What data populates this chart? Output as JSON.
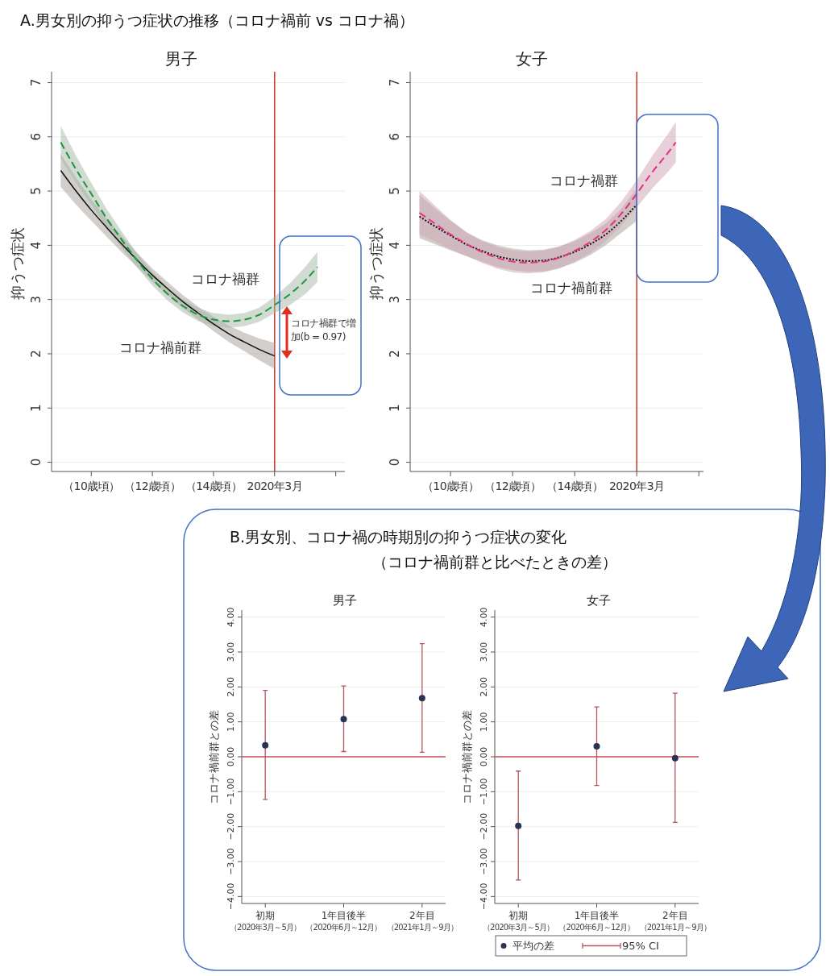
{
  "chart_data": [
    {
      "type": "line",
      "title": "男子",
      "ylabel": "抑うつ症状",
      "xlim": [
        8.7,
        18.3
      ],
      "xticks": [
        {
          "value": 10,
          "label": "（10歳頃）"
        },
        {
          "value": 12,
          "label": "（12歳頃）"
        },
        {
          "value": 14,
          "label": "（14歳頃）"
        },
        {
          "value": 16,
          "label": "2020年3月"
        },
        {
          "value": 18,
          "label": null
        }
      ],
      "ylim": [
        -0.17,
        7.2
      ],
      "yticks": [
        0,
        1,
        2,
        3,
        4,
        5,
        6,
        7
      ],
      "grid": "y",
      "legend": false,
      "ref_lines": [
        {
          "axis": "x",
          "value": 16,
          "color": "#c0392b"
        }
      ],
      "annotations": [
        "A.男女別の抑うつ症状の推移（コロナ禍前 vs コロナ禍）",
        "コロナ禍群で増加(b = 0.97)"
      ],
      "series": [
        {
          "name": "コロナ禍前群",
          "color": "#111111",
          "line_style": "solid",
          "x": [
            9,
            9.5,
            10,
            10.5,
            11,
            11.5,
            12,
            12.5,
            13,
            13.5,
            14,
            14.5,
            15,
            15.5,
            16
          ],
          "values": [
            5.38,
            5.0,
            4.65,
            4.33,
            4.02,
            3.73,
            3.45,
            3.2,
            2.96,
            2.75,
            2.55,
            2.37,
            2.22,
            2.08,
            1.96
          ],
          "lower": [
            5.08,
            4.75,
            4.45,
            4.16,
            3.87,
            3.6,
            3.33,
            3.08,
            2.84,
            2.63,
            2.42,
            2.22,
            2.05,
            1.88,
            1.72
          ],
          "upper": [
            5.68,
            5.25,
            4.85,
            4.5,
            4.17,
            3.86,
            3.57,
            3.32,
            3.08,
            2.87,
            2.68,
            2.52,
            2.39,
            2.28,
            2.2
          ]
        },
        {
          "name": "コロナ禍群",
          "color": "#1a9641",
          "line_style": "dashed",
          "x": [
            9,
            9.5,
            10,
            10.5,
            11,
            11.5,
            12,
            12.5,
            13,
            13.5,
            14,
            14.5,
            15,
            15.5,
            16,
            16.5,
            17,
            17.4
          ],
          "values": [
            5.9,
            5.4,
            4.95,
            4.5,
            4.1,
            3.72,
            3.38,
            3.1,
            2.88,
            2.72,
            2.63,
            2.6,
            2.63,
            2.72,
            2.9,
            3.1,
            3.35,
            3.6
          ],
          "lower": [
            5.6,
            5.15,
            4.75,
            4.33,
            3.95,
            3.59,
            3.26,
            2.98,
            2.76,
            2.6,
            2.51,
            2.48,
            2.51,
            2.59,
            2.75,
            2.9,
            3.1,
            3.32
          ],
          "upper": [
            6.2,
            5.65,
            5.15,
            4.67,
            4.25,
            3.85,
            3.5,
            3.22,
            3.0,
            2.84,
            2.75,
            2.72,
            2.75,
            2.85,
            3.05,
            3.3,
            3.6,
            3.88
          ]
        }
      ]
    },
    {
      "type": "line",
      "title": "女子",
      "ylabel": "抑うつ症状",
      "xlim": [
        8.7,
        18.15
      ],
      "xticks": [
        {
          "value": 10,
          "label": "（10歳頃）"
        },
        {
          "value": 12,
          "label": "（12歳頃）"
        },
        {
          "value": 14,
          "label": "（14歳頃）"
        },
        {
          "value": 16,
          "label": "2020年3月"
        },
        {
          "value": 18,
          "label": null
        }
      ],
      "ylim": [
        -0.17,
        7.2
      ],
      "yticks": [
        0,
        1,
        2,
        3,
        4,
        5,
        6,
        7
      ],
      "grid": "y",
      "legend": false,
      "ref_lines": [
        {
          "axis": "x",
          "value": 16,
          "color": "#c0392b"
        }
      ],
      "series": [
        {
          "name": "コロナ禍前群",
          "color": "#111111",
          "line_style": "dotted",
          "x": [
            9,
            9.5,
            10,
            10.5,
            11,
            11.5,
            12,
            12.5,
            13,
            13.5,
            14,
            14.5,
            15,
            15.5,
            16
          ],
          "values": [
            4.53,
            4.35,
            4.18,
            4.02,
            3.9,
            3.8,
            3.74,
            3.71,
            3.72,
            3.78,
            3.88,
            4.02,
            4.2,
            4.45,
            4.75
          ],
          "lower": [
            4.13,
            4.02,
            3.91,
            3.8,
            3.7,
            3.6,
            3.54,
            3.51,
            3.52,
            3.58,
            3.68,
            3.82,
            4.0,
            4.23,
            4.45
          ],
          "upper": [
            4.93,
            4.68,
            4.45,
            4.24,
            4.1,
            4.0,
            3.94,
            3.91,
            3.92,
            3.98,
            4.08,
            4.22,
            4.4,
            4.67,
            5.05
          ]
        },
        {
          "name": "コロナ禍群",
          "color": "#e8308a",
          "line_style": "dashed",
          "x": [
            9,
            9.5,
            10,
            10.5,
            11,
            11.5,
            12,
            12.5,
            13,
            13.5,
            14,
            14.5,
            15,
            15.5,
            16,
            16.5,
            17,
            17.26
          ],
          "values": [
            4.6,
            4.4,
            4.2,
            4.03,
            3.88,
            3.77,
            3.7,
            3.68,
            3.7,
            3.77,
            3.9,
            4.06,
            4.28,
            4.58,
            4.95,
            5.35,
            5.7,
            5.9
          ],
          "lower": [
            4.2,
            4.07,
            3.93,
            3.81,
            3.68,
            3.57,
            3.5,
            3.48,
            3.5,
            3.57,
            3.7,
            3.86,
            4.08,
            4.36,
            4.7,
            5.05,
            5.35,
            5.53
          ],
          "upper": [
            5.0,
            4.73,
            4.47,
            4.25,
            4.08,
            3.97,
            3.9,
            3.88,
            3.9,
            3.97,
            4.1,
            4.26,
            4.48,
            4.8,
            5.2,
            5.65,
            6.05,
            6.27
          ]
        }
      ]
    },
    {
      "type": "scatter",
      "title": "男子",
      "ylabel": "コロナ禍前群との差",
      "categories": [
        "初期（2020年3月～5月）",
        "1年目後半（2020年6月～12月）",
        "2年目（2021年1月～9月）"
      ],
      "ylim": [
        -4.2,
        4.2
      ],
      "yticks": [
        {
          "value": -4,
          "label": "−4.00"
        },
        {
          "value": -3,
          "label": "−3.00"
        },
        {
          "value": -2,
          "label": "−2.00"
        },
        {
          "value": -1,
          "label": "−1.00"
        },
        {
          "value": 0,
          "label": "0.00"
        },
        {
          "value": 1,
          "label": "1.00"
        },
        {
          "value": 2,
          "label": "2.00"
        },
        {
          "value": 3,
          "label": "3.00"
        },
        {
          "value": 4,
          "label": "4.00"
        }
      ],
      "grid": "y",
      "marker": "circle",
      "ref_lines": [
        {
          "axis": "y",
          "value": 0,
          "color": "#d0505a"
        }
      ],
      "annotations": [
        "B.男女別、コロナ禍の時期別の抑うつ症状の変化（コロナ禍前群と比べたときの差）"
      ],
      "series": [
        {
          "color": "#2b3352",
          "values": [
            0.33,
            1.08,
            1.68
          ],
          "errors": [
            [
              -1.22,
              1.9
            ],
            [
              0.15,
              2.03
            ],
            [
              0.13,
              3.24
            ]
          ]
        }
      ]
    },
    {
      "type": "scatter",
      "title": "女子",
      "ylabel": "コロナ禍前群との差",
      "categories": [
        "初期（2020年3月～5月）",
        "1年目後半（2020年6月～12月）",
        "2年目（2021年1月～9月）"
      ],
      "ylim": [
        -4.2,
        4.2
      ],
      "yticks": [
        {
          "value": -4,
          "label": "−4.00"
        },
        {
          "value": -3,
          "label": "−3.00"
        },
        {
          "value": -2,
          "label": "−2.00"
        },
        {
          "value": -1,
          "label": "−1.00"
        },
        {
          "value": 0,
          "label": "0.00"
        },
        {
          "value": 1,
          "label": "1.00"
        },
        {
          "value": 2,
          "label": "2.00"
        },
        {
          "value": 3,
          "label": "3.00"
        },
        {
          "value": 4,
          "label": "4.00"
        }
      ],
      "grid": "y",
      "marker": "circle",
      "legend": "bottom",
      "ref_lines": [
        {
          "axis": "y",
          "value": 0,
          "color": "#d0505a"
        }
      ],
      "annotations": [
        "95% CI"
      ],
      "series": [
        {
          "name": "平均の差",
          "color": "#2b3352",
          "values": [
            -1.98,
            0.3,
            -0.04
          ],
          "errors": [
            [
              -3.53,
              -0.41
            ],
            [
              -0.82,
              1.43
            ],
            [
              -1.88,
              1.82
            ]
          ]
        }
      ]
    }
  ]
}
